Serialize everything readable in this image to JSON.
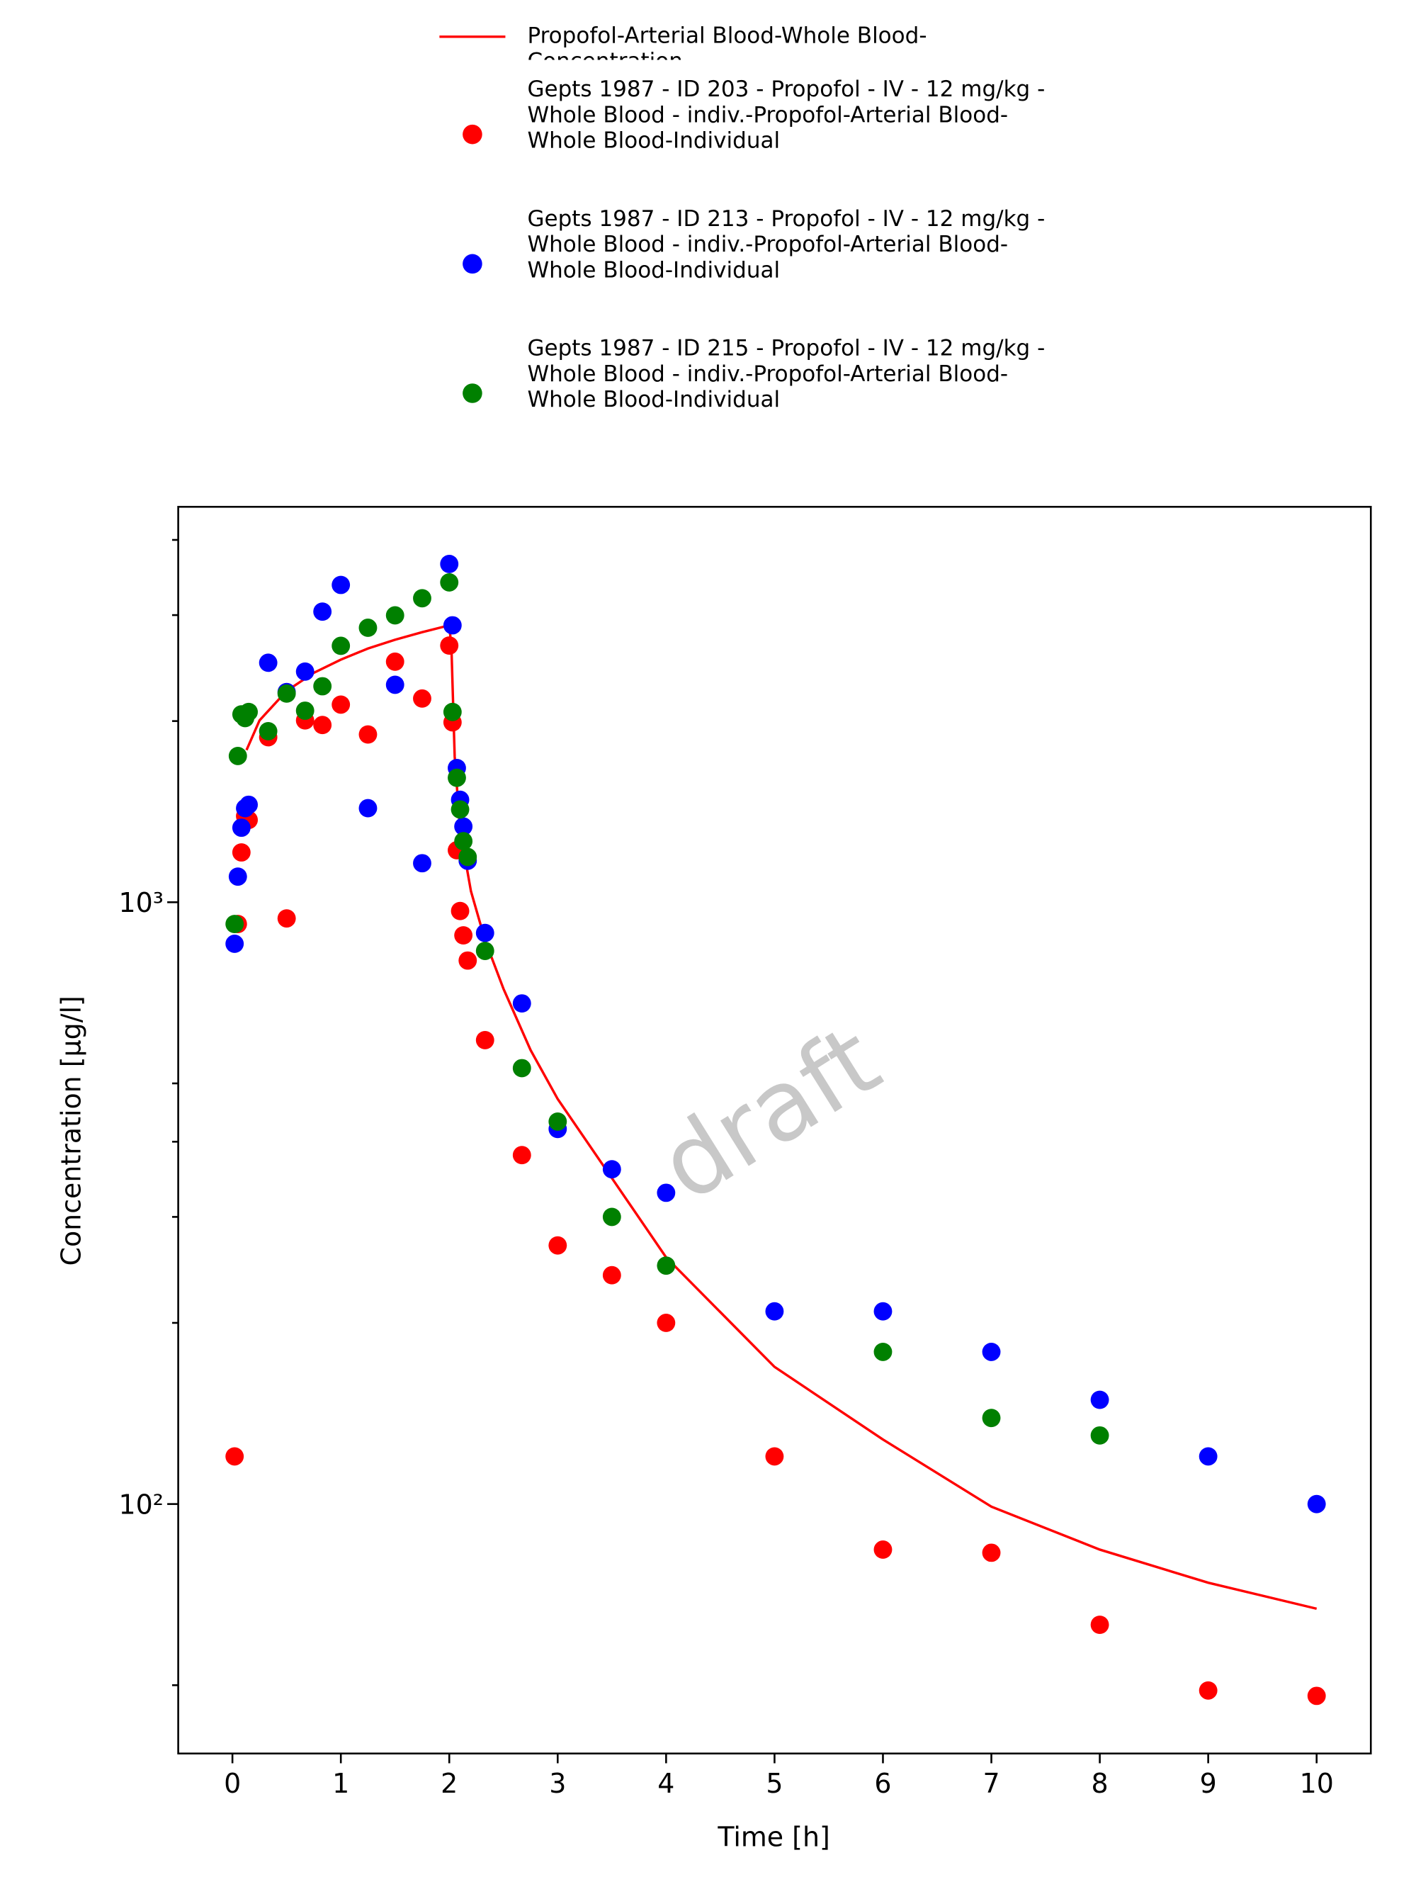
{
  "chart_data": {
    "type": "scatter",
    "xlabel": "Time [h]",
    "ylabel": "Concentration [µg/l]",
    "watermark": "draft",
    "yscale": "log",
    "xlim": [
      -0.5,
      10.5
    ],
    "ylim": [
      38.5,
      4540
    ],
    "xticks": [
      0,
      1,
      2,
      3,
      4,
      5,
      6,
      7,
      8,
      9,
      10
    ],
    "yticks": [
      {
        "value": 100,
        "label": "10²"
      },
      {
        "value": 1000,
        "label": "10³"
      }
    ],
    "yminorticks": [
      50,
      200,
      300,
      400,
      500,
      2000,
      3000,
      4000
    ],
    "legend": "top",
    "series": [
      {
        "name": "Propofol-Arterial Blood-Whole Blood-Concentration",
        "color": "#ff0000",
        "style": "line",
        "x": [
          0.13,
          0.25,
          0.5,
          0.75,
          1.0,
          1.25,
          1.5,
          1.75,
          2.0,
          2.02,
          2.05,
          2.1,
          2.2,
          2.33,
          2.5,
          2.75,
          3.0,
          3.5,
          4.0,
          5.0,
          6.0,
          7.0,
          8.0,
          9.0,
          10.0
        ],
        "values": [
          1790,
          2005,
          2245,
          2405,
          2530,
          2640,
          2730,
          2810,
          2885,
          2650,
          1745,
          1317,
          1043,
          865,
          718,
          568,
          471,
          348,
          257,
          169,
          128,
          99,
          84,
          74,
          67
        ]
      },
      {
        "name": "Gepts 1987 - ID 203 - Propofol - IV - 12 mg/kg - Whole Blood - indiv.-Propofol-Arterial Blood-Whole Blood-Individual",
        "color": "#ff0000",
        "style": "marker",
        "x": [
          0.02,
          0.05,
          0.083,
          0.117,
          0.15,
          0.33,
          0.5,
          0.67,
          0.83,
          1.0,
          1.25,
          1.5,
          1.75,
          2.0,
          2.03,
          2.07,
          2.1,
          2.13,
          2.17,
          2.33,
          2.67,
          3,
          3.5,
          4,
          5,
          6,
          7,
          8,
          9,
          10
        ],
        "values": [
          120,
          920,
          1210,
          1390,
          1370,
          1880,
          940,
          2005,
          1970,
          2130,
          1900,
          2510,
          2180,
          2670,
          1990,
          1220,
          967,
          881,
          800,
          590,
          380,
          269,
          240,
          200,
          120,
          84,
          83,
          63,
          49,
          48
        ]
      },
      {
        "name": "Gepts 1987 - ID 213 - Propofol - IV - 12 mg/kg - Whole Blood - indiv.-Propofol-Arterial Blood-Whole Blood-Individual",
        "color": "#0000ff",
        "style": "marker",
        "x": [
          0.02,
          0.05,
          0.083,
          0.117,
          0.15,
          0.33,
          0.5,
          0.67,
          0.83,
          1.0,
          1.25,
          1.5,
          1.75,
          2.0,
          2.03,
          2.07,
          2.1,
          2.13,
          2.17,
          2.33,
          2.67,
          3,
          3.5,
          4,
          5,
          6,
          7,
          8,
          9,
          10
        ],
        "values": [
          853,
          1103,
          1330,
          1433,
          1452,
          2500,
          2235,
          2417,
          3040,
          3367,
          1433,
          2298,
          1161,
          3648,
          2885,
          1671,
          1480,
          1336,
          1172,
          889,
          679,
          420,
          360,
          329,
          209,
          209,
          179,
          149,
          120,
          100
        ]
      },
      {
        "name": "Gepts 1987 - ID 215 - Propofol - IV - 12 mg/kg - Whole Blood - indiv.-Propofol-Arterial Blood-Whole Blood-Individual",
        "color": "#008000",
        "style": "marker",
        "x": [
          0.02,
          0.05,
          0.083,
          0.117,
          0.15,
          0.33,
          0.5,
          0.67,
          0.83,
          1.0,
          1.25,
          1.5,
          1.75,
          2.0,
          2.03,
          2.07,
          2.1,
          2.13,
          2.17,
          2.33,
          2.67,
          3,
          3.5,
          4,
          6,
          7,
          8
        ],
        "values": [
          920,
          1750,
          2052,
          2023,
          2071,
          1924,
          2222,
          2081,
          2285,
          2667,
          2858,
          2997,
          3200,
          3400,
          2071,
          1610,
          1426,
          1263,
          1189,
          830,
          530,
          432,
          300,
          249,
          179,
          139,
          130
        ]
      }
    ]
  }
}
